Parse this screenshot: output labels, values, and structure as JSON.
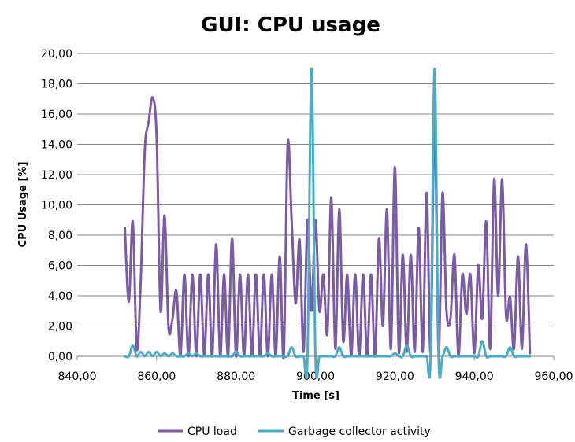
{
  "chart_data": {
    "type": "line",
    "title": "GUI: CPU usage",
    "xlabel": "Time [s]",
    "ylabel": "CPU Usage [%]",
    "xlim": [
      840,
      960
    ],
    "ylim": [
      0,
      20
    ],
    "x_ticks": [
      "840,00",
      "860,00",
      "880,00",
      "900,00",
      "920,00",
      "940,00",
      "960,00"
    ],
    "y_ticks": [
      "0,00",
      "2,00",
      "4,00",
      "6,00",
      "8,00",
      "10,00",
      "12,00",
      "14,00",
      "16,00",
      "18,00",
      "20,00"
    ],
    "grid": true,
    "legend_position": "bottom",
    "series": [
      {
        "name": "CPU load",
        "color": "#7B5BA6",
        "x": [
          852,
          853,
          854,
          855,
          856,
          857,
          858,
          859,
          860,
          861,
          862,
          863,
          864,
          865,
          866,
          867,
          868,
          869,
          870,
          871,
          872,
          873,
          874,
          875,
          876,
          877,
          878,
          879,
          880,
          881,
          882,
          883,
          884,
          885,
          886,
          887,
          888,
          889,
          890,
          891,
          892,
          893,
          894,
          895,
          896,
          897,
          898,
          899,
          900,
          901,
          902,
          903,
          904,
          905,
          906,
          907,
          908,
          909,
          910,
          911,
          912,
          913,
          914,
          915,
          916,
          917,
          918,
          919,
          920,
          921,
          922,
          923,
          924,
          925,
          926,
          927,
          928,
          929,
          930,
          931,
          932,
          933,
          934,
          935,
          936,
          937,
          938,
          939,
          940,
          941,
          942,
          943,
          944,
          945,
          946,
          947,
          948,
          949,
          950,
          951,
          952,
          953,
          954
        ],
        "values": [
          8.5,
          3.6,
          8.9,
          0.5,
          5.0,
          13.5,
          15.5,
          17.1,
          14.5,
          3.0,
          9.3,
          1.9,
          2.5,
          4.3,
          0,
          5.4,
          0,
          5.4,
          0,
          5.4,
          0,
          5.4,
          0,
          7.4,
          0,
          5.4,
          0,
          7.8,
          0,
          5.4,
          0,
          5.4,
          0,
          5.4,
          0,
          5.4,
          0,
          5.4,
          0,
          6.6,
          0,
          14.0,
          9.0,
          3.5,
          7.7,
          0.3,
          9.0,
          3.0,
          9.0,
          3.0,
          5.4,
          1.5,
          10.5,
          0.5,
          9.7,
          1.0,
          5.4,
          0,
          5.4,
          0,
          5.4,
          0,
          5.4,
          0,
          7.8,
          2.0,
          9.7,
          0.5,
          12.5,
          0.3,
          6.7,
          0.3,
          6.7,
          0.3,
          8.5,
          0.3,
          10.8,
          0.3,
          15.8,
          0.3,
          10.8,
          3.0,
          2.5,
          6.7,
          0,
          5.4,
          2.8,
          5.4,
          0.2,
          6.0,
          2.5,
          8.9,
          0.5,
          11.7,
          4.0,
          11.7,
          2.7,
          3.9,
          0.5,
          6.6,
          0.5,
          7.4,
          0.2
        ]
      },
      {
        "name": "Garbage collector activity",
        "color": "#4BACC6",
        "x": [
          852,
          853,
          854,
          855,
          856,
          857,
          858,
          859,
          860,
          861,
          862,
          863,
          864,
          865,
          866,
          867,
          868,
          869,
          870,
          871,
          872,
          873,
          874,
          875,
          876,
          877,
          878,
          879,
          880,
          881,
          882,
          883,
          884,
          885,
          886,
          887,
          888,
          889,
          890,
          891,
          892,
          893,
          894,
          895,
          896,
          897,
          898,
          899,
          900,
          901,
          902,
          903,
          904,
          905,
          906,
          907,
          908,
          909,
          910,
          911,
          912,
          913,
          914,
          915,
          916,
          917,
          918,
          919,
          920,
          921,
          922,
          923,
          924,
          925,
          926,
          927,
          928,
          929,
          930,
          931,
          932,
          933,
          934,
          935,
          936,
          937,
          938,
          939,
          940,
          941,
          942,
          943,
          944,
          945,
          946,
          947,
          948,
          949,
          950,
          951,
          952,
          953,
          954
        ],
        "values": [
          0,
          0,
          0.7,
          0,
          0.3,
          0,
          0.3,
          0,
          0.3,
          0,
          0.2,
          0,
          0.2,
          0,
          0,
          0,
          0.2,
          0,
          0.2,
          0,
          0,
          0,
          0,
          0,
          0,
          0,
          0,
          0,
          0.3,
          0,
          0,
          0,
          0,
          0,
          0,
          0,
          0.2,
          0,
          0,
          0,
          0,
          0,
          0.6,
          0,
          0,
          0,
          0,
          19.0,
          0,
          0,
          0,
          0,
          0,
          0,
          0.6,
          0,
          0,
          0,
          0,
          0,
          0,
          0,
          0,
          0,
          0,
          0,
          0,
          0,
          0.2,
          0,
          0,
          0.7,
          0,
          0,
          0,
          0,
          0,
          0,
          19.0,
          0,
          0,
          0.6,
          0,
          0,
          0,
          0,
          0,
          0,
          0,
          0,
          1.0,
          0,
          0,
          0,
          0,
          0,
          0,
          0.6,
          0,
          0,
          0,
          0,
          0
        ]
      }
    ]
  }
}
